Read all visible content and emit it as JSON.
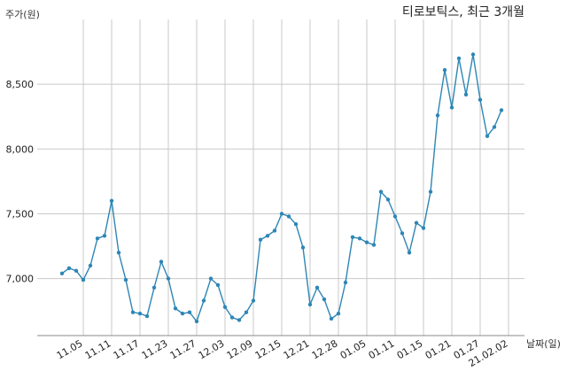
{
  "chart_data": {
    "type": "line",
    "title": "티로보틱스, 최근 3개월",
    "ylabel": "주가(원)",
    "xlabel": "날짜(일)",
    "ylim": [
      6560,
      9000
    ],
    "yticks": [
      7000,
      7500,
      8000,
      8500
    ],
    "ytick_labels": [
      "7,000",
      "7,500",
      "8,000",
      "8,500"
    ],
    "xtick_labels": [
      "11.05",
      "11.11",
      "11.17",
      "11.23",
      "11.27",
      "12.03",
      "12.09",
      "12.15",
      "12.21",
      "12.28",
      "01.05",
      "01.11",
      "01.15",
      "01.21",
      "01.27",
      "21.02.02"
    ],
    "xtick_indices": [
      3,
      7,
      11,
      15,
      19,
      23,
      27,
      31,
      35,
      39,
      43,
      47,
      51,
      55,
      59,
      63
    ],
    "grid": true,
    "line_color": "#2e86b5",
    "series": [
      {
        "values": [
          7040,
          7080,
          7060,
          6990,
          7100,
          7310,
          7330,
          7600,
          7200,
          6990,
          6740,
          6730,
          6710,
          6930,
          7130,
          7000,
          6770,
          6730,
          6740,
          6670,
          6830,
          7000,
          6950,
          6780,
          6700,
          6680,
          6740,
          6830,
          7300,
          7330,
          7370,
          7500,
          7480,
          7420,
          7240,
          6800,
          6930,
          6840,
          6690,
          6730,
          6970,
          7320,
          7310,
          7280,
          7260,
          7670,
          7610,
          7480,
          7350,
          7200,
          7430,
          7390,
          7670,
          8260,
          8610,
          8320,
          8700,
          8420,
          8730,
          8380,
          8100,
          8170,
          8300
        ]
      }
    ]
  }
}
